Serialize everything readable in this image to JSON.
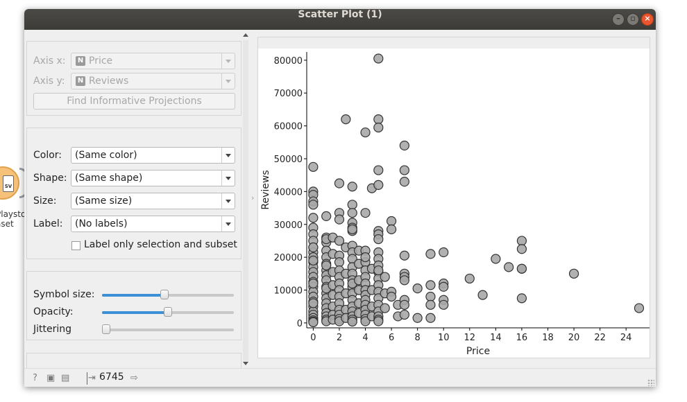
{
  "window": {
    "title": "Scatter Plot (1)"
  },
  "canvas": {
    "node_label_line1": "Playsto",
    "node_label_line2": "aset",
    "node_icon_text": "SV"
  },
  "axes_panel": {
    "axis_x_label": "Axis x:",
    "axis_x_value": "Price",
    "axis_x_badge": "N",
    "axis_y_label": "Axis y:",
    "axis_y_value": "Reviews",
    "axis_y_badge": "N",
    "find_projections": "Find Informative Projections"
  },
  "attributes_panel": {
    "color_label": "Color:",
    "color_value": "(Same color)",
    "shape_label": "Shape:",
    "shape_value": "(Same shape)",
    "size_label": "Size:",
    "size_value": "(Same size)",
    "label_label": "Label:",
    "label_value": "(No labels)",
    "label_only_selection": "Label only selection and subset",
    "label_only_selection_checked": false
  },
  "sliders_panel": {
    "symbol_size_label": "Symbol size:",
    "symbol_size_level": 0.47,
    "opacity_label": "Opacity:",
    "opacity_level": 0.5,
    "jittering_label": "Jittering",
    "jittering_level": 0.0
  },
  "status": {
    "data_count": "6745"
  },
  "chart_data": {
    "type": "scatter",
    "xlabel": "Price",
    "ylabel": "Reviews",
    "xlim": [
      -0.5,
      25.8
    ],
    "ylim": [
      -1500,
      82500
    ],
    "xticks": [
      0,
      2,
      4,
      6,
      8,
      10,
      12,
      14,
      16,
      18,
      20,
      22,
      24
    ],
    "yticks": [
      0,
      10000,
      20000,
      30000,
      40000,
      50000,
      60000,
      70000,
      80000
    ],
    "marker_color": "#a9a9a9",
    "marker_edge": "#333333",
    "x": [
      0,
      0,
      0,
      0,
      0,
      0,
      0,
      0,
      0,
      0,
      0,
      0,
      0,
      0,
      0,
      0,
      0,
      0,
      0,
      0,
      0,
      0,
      0,
      0,
      0,
      0,
      0,
      0,
      0,
      0,
      0,
      0,
      1,
      1,
      1,
      1,
      1,
      1,
      1,
      1,
      1,
      1,
      1,
      1,
      1,
      1,
      1,
      1,
      1,
      1,
      1,
      1,
      1,
      1.5,
      1.5,
      1.5,
      1.5,
      1.5,
      1.5,
      1.5,
      1.5,
      2,
      2,
      2,
      2,
      2,
      2,
      2,
      2,
      2,
      2,
      2,
      2,
      2,
      2,
      2,
      2,
      2.5,
      2.5,
      2.5,
      2.5,
      2.5,
      2.5,
      3,
      3,
      3,
      3,
      3,
      3,
      3,
      3,
      3,
      3,
      3,
      3,
      3,
      3,
      3,
      3,
      3,
      3,
      3,
      3,
      3,
      3,
      3.5,
      3.5,
      3.5,
      3.5,
      3.5,
      3.5,
      4,
      4,
      4,
      4,
      4,
      4,
      4,
      4,
      4,
      4,
      4,
      4,
      4,
      4,
      4,
      4,
      4.5,
      4.5,
      4.5,
      4.5,
      4.5,
      5,
      5,
      5,
      5,
      5,
      5,
      5,
      5,
      5,
      5,
      5,
      5,
      5,
      5,
      5,
      5,
      5,
      5,
      5,
      5,
      5,
      5,
      5.5,
      5.5,
      5.5,
      6,
      6,
      6,
      6,
      6.5,
      6.5,
      7,
      7,
      7,
      7,
      7,
      7,
      7,
      7,
      7,
      7,
      8,
      8,
      9,
      9,
      9,
      9,
      9,
      10,
      10,
      10,
      10,
      10,
      12,
      13,
      14,
      15,
      16,
      16,
      16,
      16,
      16,
      20,
      25
    ],
    "y": [
      47500,
      40000,
      39000,
      37000,
      36000,
      32000,
      29000,
      27000,
      25000,
      23000,
      21500,
      20000,
      18500,
      17000,
      15500,
      14000,
      12500,
      11000,
      9500,
      8000,
      6500,
      5000,
      3500,
      2500,
      1500,
      800,
      400,
      200,
      23000,
      19000,
      12000,
      6000,
      32500,
      26000,
      24500,
      22000,
      20000,
      18000,
      16000,
      14500,
      13000,
      11000,
      9000,
      7500,
      6000,
      4500,
      3000,
      2000,
      1000,
      500,
      25500,
      17500,
      10500,
      26000,
      21000,
      15500,
      11500,
      8500,
      5000,
      2500,
      1000,
      42500,
      33500,
      31500,
      25000,
      20500,
      18500,
      16000,
      14000,
      12000,
      10000,
      8000,
      6000,
      4000,
      2500,
      1200,
      500,
      62000,
      23000,
      15000,
      9000,
      4000,
      1500,
      41500,
      36000,
      33500,
      30500,
      29000,
      28000,
      23500,
      21500,
      19500,
      17000,
      15000,
      13000,
      11000,
      9000,
      7000,
      5000,
      3500,
      2000,
      1000,
      400,
      28500,
      12000,
      22000,
      18000,
      13000,
      10000,
      6000,
      3000,
      58000,
      33500,
      22000,
      18500,
      16000,
      14000,
      12000,
      10000,
      8500,
      7000,
      5500,
      4000,
      2500,
      1200,
      500,
      20000,
      41000,
      16500,
      10000,
      5000,
      2000,
      80500,
      62000,
      59500,
      46500,
      42000,
      28000,
      27000,
      25500,
      21500,
      19500,
      17500,
      15500,
      13500,
      11500,
      9500,
      7500,
      5500,
      3500,
      2000,
      1000,
      500,
      16000,
      14000,
      9000,
      4500,
      31000,
      28500,
      9500,
      8000,
      5500,
      2000,
      54000,
      46500,
      43000,
      20500,
      15000,
      14000,
      13000,
      7000,
      5500,
      2500,
      10500,
      1500,
      21000,
      11500,
      8000,
      5500,
      1500,
      21500,
      12000,
      11000,
      7000,
      5500,
      13500,
      8500,
      19500,
      17000,
      25000,
      22500,
      16500,
      7500,
      16500,
      15000,
      4500
    ]
  }
}
